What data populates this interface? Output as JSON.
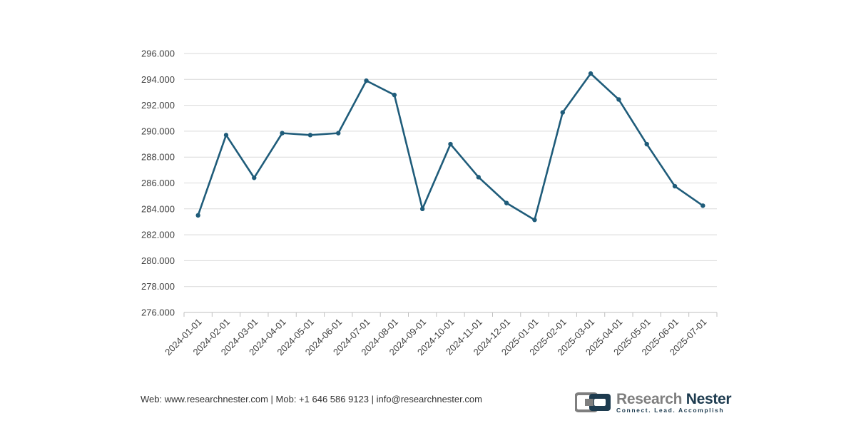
{
  "chart_data": {
    "type": "line",
    "title": "",
    "xlabel": "",
    "ylabel": "",
    "categories": [
      "2024-01-01",
      "2024-02-01",
      "2024-03-01",
      "2024-04-01",
      "2024-05-01",
      "2024-06-01",
      "2024-07-01",
      "2024-08-01",
      "2024-09-01",
      "2024-10-01",
      "2024-11-01",
      "2024-12-01",
      "2025-01-01",
      "2025-02-01",
      "2025-03-01",
      "2025-04-01",
      "2025-05-01",
      "2025-06-01",
      "2025-07-01"
    ],
    "series": [
      {
        "values": [
          283.5,
          289.7,
          286.4,
          289.85,
          289.7,
          289.85,
          293.9,
          292.8,
          284.0,
          289.0,
          286.45,
          284.45,
          283.15,
          291.45,
          294.45,
          292.45,
          289.0,
          285.75,
          284.25
        ],
        "color": "#1f5c7a"
      }
    ],
    "ylim": [
      276.0,
      296.0
    ],
    "yticks": [
      "276.000",
      "278.000",
      "280.000",
      "282.000",
      "284.000",
      "286.000",
      "288.000",
      "290.000",
      "292.000",
      "294.000",
      "296.000"
    ],
    "grid": true,
    "legend": "none"
  },
  "footer": {
    "contact": "Web: www.researchnester.com | Mob: +1 646 586 9123 | info@researchnester.com"
  },
  "brand": {
    "name_part1": "Research",
    "name_part2": "Nester",
    "tagline": "Connect. Lead. Accomplish",
    "logo_icon": "research-nester-logo-icon"
  }
}
